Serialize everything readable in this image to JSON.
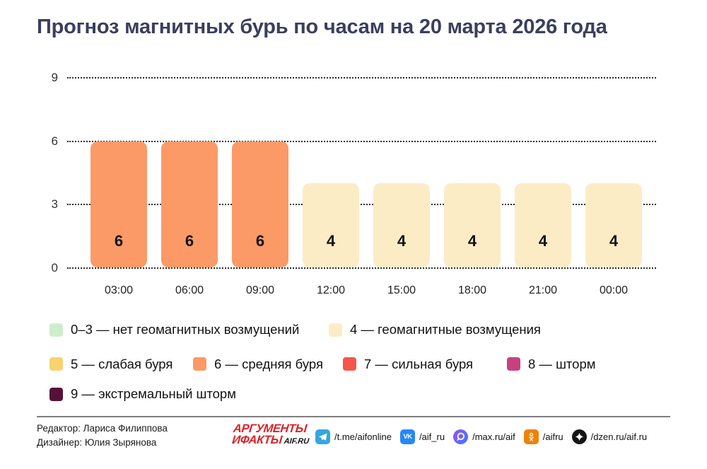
{
  "title": "Прогноз магнитных бурь по часам на 20 марта 2026 года",
  "colors": {
    "title_text": "#3a3f5e",
    "bar_level_6": "#fb9a67",
    "bar_level_4": "#fcecc6",
    "divider": "#7f7f7f",
    "logo_red": "#d8232a"
  },
  "chart_data": {
    "type": "bar",
    "title": "Прогноз магнитных бурь по часам на 20 марта 2026 года",
    "categories": [
      "03:00",
      "06:00",
      "09:00",
      "12:00",
      "15:00",
      "18:00",
      "21:00",
      "00:00"
    ],
    "values": [
      6,
      6,
      6,
      4,
      4,
      4,
      4,
      4
    ],
    "bar_colors": [
      "#fb9a67",
      "#fb9a67",
      "#fb9a67",
      "#fcecc6",
      "#fcecc6",
      "#fcecc6",
      "#fcecc6",
      "#fcecc6"
    ],
    "xlabel": "",
    "ylabel": "",
    "yticks": [
      0,
      3,
      6,
      9
    ],
    "ylim": [
      0,
      9
    ],
    "grid": "horizontal-dotted",
    "legend_position": "below"
  },
  "legend": {
    "rows": [
      [
        {
          "color": "#cdeecd",
          "label": "0–3 — нет геомагнитных возмущений"
        },
        {
          "color": "#fcecc6",
          "label": "4 — геомагнитные возмущения"
        }
      ],
      [
        {
          "color": "#f8d36e",
          "label": "5 — слабая буря"
        },
        {
          "color": "#fb9a67",
          "label": "6 — средняя буря"
        },
        {
          "color": "#f5554a",
          "label": "7 — сильная буря"
        },
        {
          "color": "#c64180",
          "label": "8 — шторм"
        }
      ],
      [
        {
          "color": "#571039",
          "label": "9 — экстремальный шторм"
        }
      ]
    ]
  },
  "footer": {
    "credits": [
      "Редактор: Лариса Филиппова",
      "Дизайнер: Юлия Зырянова"
    ],
    "logo": {
      "line1": "АРГУМЕНТЫ",
      "line2": "ИФАКТЫ",
      "suffix": "AIF.RU"
    },
    "social": [
      {
        "icon": "telegram-icon",
        "label": "/t.me/aifonline",
        "color": "#35a6de"
      },
      {
        "icon": "vk-icon",
        "label": "/aif_ru",
        "color": "#2787f5"
      },
      {
        "icon": "max-icon",
        "label": "/max.ru/aif",
        "color": "linear-gradient(120deg,#9a4df6,#3b7bfd)"
      },
      {
        "icon": "ok-icon",
        "label": "/aifru",
        "color": "#ee8208"
      },
      {
        "icon": "dzen-icon",
        "label": "/dzen.ru/aif.ru",
        "color": "#141414"
      }
    ]
  }
}
